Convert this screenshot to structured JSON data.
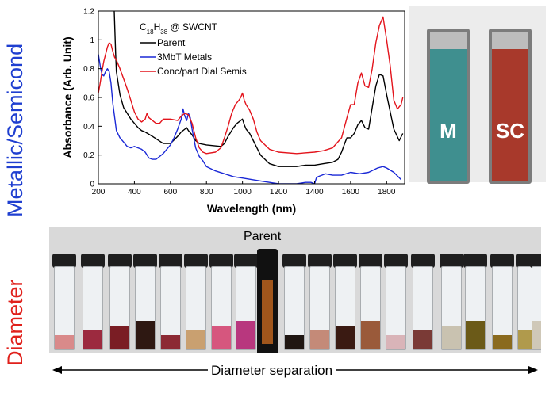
{
  "side_labels": {
    "top": {
      "text": "Metallic/Semicond",
      "color": "#1f3fd0"
    },
    "bottom": {
      "text": "Diameter",
      "color": "#e0201b"
    }
  },
  "chart_data": {
    "type": "line",
    "xlabel": "Wavelength (nm)",
    "ylabel": "Absorbance (Arb. Unit)",
    "xlim": [
      200,
      1900
    ],
    "ylim": [
      0,
      1.2
    ],
    "xticks": [
      200,
      400,
      600,
      800,
      1000,
      1200,
      1400,
      1600,
      1800
    ],
    "yticks": [
      0,
      0.2,
      0.4,
      0.6,
      0.8,
      1,
      1.2
    ],
    "grid": false,
    "legend_title": {
      "base": "C",
      "sub1": "18",
      "mid": "H",
      "sub2": "38",
      "tail": " @ SWCNT"
    },
    "series": [
      {
        "name": "Parent",
        "color": "#000000",
        "x": [
          265,
          268,
          280,
          288,
          296,
          300,
          320,
          340,
          380,
          420,
          440,
          460,
          500,
          560,
          600,
          640,
          660,
          680,
          690,
          700,
          720,
          740,
          760,
          800,
          880,
          900,
          920,
          950,
          970,
          990,
          1000,
          1010,
          1020,
          1040,
          1060,
          1080,
          1100,
          1150,
          1200,
          1300,
          1350,
          1400,
          1450,
          1500,
          1530,
          1550,
          1570,
          1580,
          1600,
          1620,
          1640,
          1660,
          1680,
          1700,
          1720,
          1740,
          1760,
          1780,
          1800,
          1840,
          1870,
          1890
        ],
        "y": [
          1.2,
          1.3,
          1.3,
          1.2,
          0.9,
          0.78,
          0.62,
          0.53,
          0.45,
          0.39,
          0.37,
          0.36,
          0.33,
          0.28,
          0.28,
          0.33,
          0.36,
          0.38,
          0.39,
          0.37,
          0.34,
          0.3,
          0.28,
          0.27,
          0.26,
          0.28,
          0.33,
          0.39,
          0.42,
          0.44,
          0.45,
          0.41,
          0.38,
          0.35,
          0.3,
          0.25,
          0.2,
          0.14,
          0.12,
          0.12,
          0.13,
          0.13,
          0.14,
          0.15,
          0.17,
          0.22,
          0.29,
          0.32,
          0.32,
          0.35,
          0.41,
          0.44,
          0.39,
          0.38,
          0.53,
          0.68,
          0.76,
          0.75,
          0.62,
          0.38,
          0.3,
          0.35
        ]
      },
      {
        "name": "3MbT Metals",
        "color": "#1a28d6",
        "x": [
          200,
          210,
          220,
          230,
          240,
          250,
          260,
          270,
          280,
          300,
          320,
          340,
          360,
          380,
          400,
          420,
          440,
          460,
          480,
          500,
          520,
          540,
          560,
          600,
          620,
          640,
          660,
          670,
          680,
          690,
          700,
          710,
          720,
          740,
          760,
          780,
          800,
          850,
          900,
          950,
          1000,
          1050,
          1100,
          1150,
          1200,
          1250,
          1300,
          1350,
          1380,
          1400,
          1410,
          1420,
          1440,
          1460,
          1500,
          1550,
          1600,
          1650,
          1700,
          1750,
          1780,
          1800,
          1840,
          1880
        ],
        "y": [
          0.9,
          0.82,
          0.76,
          0.75,
          0.78,
          0.8,
          0.78,
          0.7,
          0.56,
          0.37,
          0.32,
          0.29,
          0.26,
          0.25,
          0.26,
          0.25,
          0.24,
          0.22,
          0.18,
          0.17,
          0.17,
          0.19,
          0.21,
          0.27,
          0.32,
          0.38,
          0.45,
          0.52,
          0.47,
          0.44,
          0.49,
          0.46,
          0.38,
          0.25,
          0.19,
          0.16,
          0.12,
          0.09,
          0.07,
          0.05,
          0.04,
          0.03,
          0.02,
          0.01,
          0.0,
          0.0,
          0.0,
          0.01,
          0.01,
          0.0,
          0.04,
          0.05,
          0.06,
          0.07,
          0.06,
          0.06,
          0.08,
          0.07,
          0.08,
          0.11,
          0.12,
          0.11,
          0.08,
          0.03
        ]
      },
      {
        "name": "Conc/part Dial Semis",
        "color": "#e3141c",
        "x": [
          200,
          210,
          220,
          230,
          240,
          250,
          260,
          270,
          280,
          290,
          300,
          320,
          340,
          360,
          380,
          400,
          420,
          440,
          460,
          470,
          480,
          500,
          520,
          540,
          560,
          600,
          640,
          660,
          680,
          700,
          720,
          740,
          760,
          780,
          800,
          850,
          880,
          900,
          920,
          940,
          960,
          980,
          990,
          1000,
          1010,
          1020,
          1040,
          1060,
          1080,
          1100,
          1150,
          1200,
          1300,
          1400,
          1450,
          1500,
          1550,
          1580,
          1600,
          1620,
          1640,
          1660,
          1680,
          1700,
          1720,
          1740,
          1760,
          1780,
          1800,
          1820,
          1840,
          1860,
          1880,
          1890
        ],
        "y": [
          0.63,
          0.7,
          0.78,
          0.85,
          0.9,
          0.95,
          0.98,
          0.97,
          0.92,
          0.88,
          0.86,
          0.8,
          0.73,
          0.66,
          0.58,
          0.5,
          0.45,
          0.43,
          0.45,
          0.49,
          0.46,
          0.44,
          0.42,
          0.42,
          0.45,
          0.45,
          0.44,
          0.47,
          0.49,
          0.48,
          0.42,
          0.32,
          0.25,
          0.22,
          0.21,
          0.22,
          0.25,
          0.32,
          0.4,
          0.49,
          0.55,
          0.58,
          0.6,
          0.63,
          0.58,
          0.55,
          0.51,
          0.45,
          0.36,
          0.3,
          0.24,
          0.22,
          0.21,
          0.22,
          0.23,
          0.25,
          0.32,
          0.46,
          0.55,
          0.55,
          0.7,
          0.77,
          0.68,
          0.67,
          0.8,
          0.98,
          1.1,
          1.16,
          1.0,
          0.82,
          0.58,
          0.52,
          0.55,
          0.6
        ]
      }
    ]
  },
  "cuvettes": [
    {
      "label": "M",
      "color": "#3f8f8f"
    },
    {
      "label": "SC",
      "color": "#a8392b"
    }
  ],
  "vials_photo": {
    "parent_label": "Parent",
    "separation_label": "Diameter separation",
    "vial_liquid_colors": [
      "#d98a8a",
      "#9c2a3f",
      "#7a1d24",
      "#2e1812",
      "#8c2a34",
      "#c9a070",
      "#d6567e",
      "#b8377e",
      "#1f1612",
      "#c48a78",
      "#3a1a12",
      "#9a5a3a",
      "#d9b4b8",
      "#7a3a36",
      "#c9c2b0",
      "#6b5a18",
      "#8a6a1e",
      "#b09a4c",
      "#201a12",
      "#cfc8b8"
    ]
  }
}
